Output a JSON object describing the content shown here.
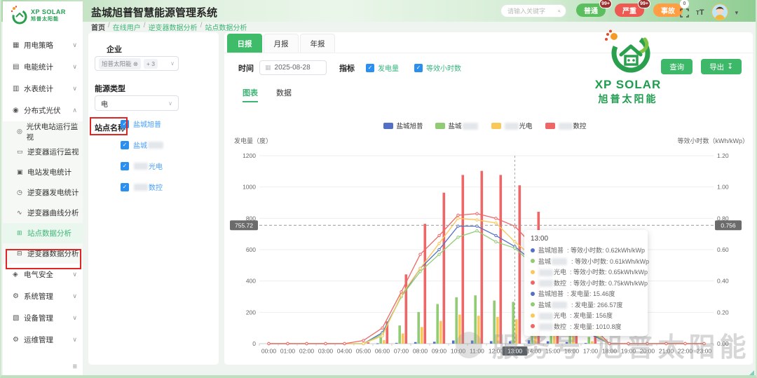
{
  "header": {
    "title": "盐城旭普智慧能源管理系统",
    "logo_text": "XP SOLAR",
    "logo_sub": "旭普太阳能",
    "search_placeholder": "请输入关键字",
    "alarms": [
      {
        "label": "普通",
        "count": "99+",
        "color": "#5bbf5f",
        "badge_bg": "#9e2f2f",
        "badge_fg": "#ffffff"
      },
      {
        "label": "严重",
        "count": "99+",
        "color": "#ee5a52",
        "badge_bg": "#9e2f2f",
        "badge_fg": "#ffffff"
      },
      {
        "label": "事故",
        "count": "0",
        "color": "#ff9e43",
        "badge_bg": "#ffffff",
        "badge_fg": "#777777"
      }
    ]
  },
  "breadcrumb": [
    "首页",
    "在线用户",
    "逆变器数据分析",
    "站点数据分析"
  ],
  "sidebar": {
    "items": [
      {
        "icon": "grid-icon",
        "glyph": "▦",
        "label": "用电策略",
        "expandable": true
      },
      {
        "icon": "energy-stats-icon",
        "glyph": "▤",
        "label": "电能统计",
        "expandable": true
      },
      {
        "icon": "water-meter-icon",
        "glyph": "▥",
        "label": "水表统计",
        "expandable": true
      },
      {
        "icon": "pv-icon",
        "glyph": "◉",
        "label": "分布式光伏",
        "expandable": true,
        "open": true,
        "children": [
          {
            "icon": "station-monitor-icon",
            "glyph": "◎",
            "label": "光伏电站运行监视"
          },
          {
            "icon": "inverter-monitor-icon",
            "glyph": "▭",
            "label": "逆变器运行监视"
          },
          {
            "icon": "gen-stats-icon",
            "glyph": "▣",
            "label": "电站发电统计"
          },
          {
            "icon": "inverter-stats-icon",
            "glyph": "◷",
            "label": "逆变器发电统计"
          },
          {
            "icon": "curve-icon",
            "glyph": "∿",
            "label": "逆变器曲线分析"
          },
          {
            "icon": "site-analysis-icon",
            "glyph": "⊞",
            "label": "站点数据分析",
            "active": true
          },
          {
            "icon": "inverter-analysis-icon",
            "glyph": "⊟",
            "label": "逆变器数据分析"
          }
        ]
      },
      {
        "icon": "electric-safety-icon",
        "glyph": "◈",
        "label": "电气安全",
        "expandable": true
      },
      {
        "icon": "system-icon",
        "glyph": "⚙",
        "label": "系统管理",
        "expandable": true
      },
      {
        "icon": "device-icon",
        "glyph": "▧",
        "label": "设备管理",
        "expandable": true
      },
      {
        "icon": "ops-icon",
        "glyph": "⚙",
        "label": "运维管理",
        "expandable": true
      }
    ]
  },
  "filters": {
    "company_label": "企业",
    "company_tag": "旭普太阳能 ⊗",
    "company_more": "+ 3",
    "energy_label": "能源类型",
    "energy_value": "电",
    "site_label": "站点名称"
  },
  "sites": [
    {
      "color": "#5470c6",
      "parts": [
        {
          "text": "盐城旭普"
        }
      ],
      "checked": true
    },
    {
      "color": "#91cc75",
      "parts": [
        {
          "text": "盐城"
        },
        {
          "redact": 22
        }
      ],
      "checked": true
    },
    {
      "color": "#fac858",
      "parts": [
        {
          "redact": 20
        },
        {
          "text": "光电"
        }
      ],
      "checked": true
    },
    {
      "color": "#ee6666",
      "parts": [
        {
          "redact": 20
        },
        {
          "text": "数控"
        }
      ],
      "checked": true
    }
  ],
  "toolbar": {
    "tabs": [
      "日报",
      "月报",
      "年报"
    ],
    "active_tab": "日报",
    "time_label": "时间",
    "date_value": "2025-08-28",
    "metric_label": "指标",
    "metrics": [
      {
        "label": "发电量",
        "checked": true
      },
      {
        "label": "等效小时数",
        "checked": true
      }
    ],
    "query_label": "查询",
    "export_label": "导出",
    "view_tabs": [
      "图表",
      "数据"
    ],
    "active_view": "图表"
  },
  "icons": {
    "check": "✓",
    "chevron_down": "∨",
    "chevron_up": "∧",
    "calendar": "▦",
    "download": "↧",
    "collapse": "≡",
    "caret": "▾"
  },
  "chart_data": {
    "type": "bar+line",
    "x": [
      "00:00",
      "01:00",
      "02:00",
      "03:00",
      "04:00",
      "05:00",
      "06:00",
      "07:00",
      "08:00",
      "09:00",
      "10:00",
      "11:00",
      "12:00",
      "13:00",
      "14:00",
      "15:00",
      "16:00",
      "17:00",
      "18:00",
      "19:00",
      "20:00",
      "21:00",
      "22:00",
      "23:00"
    ],
    "left_axis": {
      "name": "发电量（度）",
      "min": 0,
      "max": 1200,
      "interval": 200
    },
    "right_axis": {
      "name": "等效小时数（kWh/kWp）",
      "min": 0,
      "max": 1.2,
      "interval": 0.2
    },
    "legend_position": "top-center",
    "grid": true,
    "series": [
      {
        "site": 0,
        "metric": "发电量",
        "type": "bar",
        "axis": "left",
        "values": [
          0,
          0,
          0,
          0,
          0,
          0,
          2,
          5,
          10,
          12,
          20,
          20,
          16,
          15.46,
          22,
          15,
          10,
          4,
          0,
          0,
          0,
          0,
          0,
          0
        ]
      },
      {
        "site": 1,
        "metric": "发电量",
        "type": "bar",
        "axis": "left",
        "values": [
          0,
          0,
          0,
          0,
          0,
          0,
          40,
          116,
          202,
          253,
          296,
          308,
          275,
          266.57,
          184,
          164,
          104,
          43,
          0,
          0,
          0,
          0,
          0,
          0
        ]
      },
      {
        "site": 2,
        "metric": "发电量",
        "type": "bar",
        "axis": "left",
        "values": [
          0,
          0,
          0,
          0,
          0,
          0,
          22,
          65,
          106,
          145,
          185,
          178,
          171,
          156,
          122,
          93,
          50,
          15,
          0,
          0,
          0,
          0,
          0,
          0
        ]
      },
      {
        "site": 3,
        "metric": "发电量",
        "type": "bar",
        "axis": "left",
        "values": [
          0,
          0,
          0,
          0,
          0,
          8,
          142,
          442,
          765,
          964,
          1077,
          1103,
          1077,
          1010.8,
          842,
          190,
          186,
          79,
          0,
          0,
          0,
          0,
          0,
          0
        ]
      },
      {
        "site": 0,
        "metric": "等效小时数",
        "type": "line",
        "axis": "right",
        "values": [
          0,
          0,
          0,
          0,
          0,
          0,
          0.07,
          0.3,
          0.48,
          0.6,
          0.75,
          0.75,
          0.69,
          0.62,
          0.52,
          0.4,
          0.27,
          0.06,
          0,
          0,
          0,
          0,
          0,
          0
        ]
      },
      {
        "site": 1,
        "metric": "等效小时数",
        "type": "line",
        "axis": "right",
        "values": [
          0,
          0,
          0,
          0,
          0,
          0,
          0.06,
          0.3,
          0.46,
          0.57,
          0.68,
          0.72,
          0.65,
          0.61,
          0.5,
          0.38,
          0.25,
          0.07,
          0,
          0,
          0,
          0,
          0,
          0
        ]
      },
      {
        "site": 2,
        "metric": "等效小时数",
        "type": "line",
        "axis": "right",
        "values": [
          0,
          0,
          0,
          0,
          0,
          0,
          0.05,
          0.31,
          0.48,
          0.64,
          0.8,
          0.79,
          0.77,
          0.65,
          0.55,
          0.42,
          0.28,
          0.08,
          0,
          0,
          0,
          0,
          0,
          0
        ]
      },
      {
        "site": 3,
        "metric": "等效小时数",
        "type": "line",
        "axis": "right",
        "values": [
          0,
          0,
          0,
          0,
          0,
          0.02,
          0.1,
          0.33,
          0.57,
          0.69,
          0.82,
          0.83,
          0.8,
          0.75,
          0.62,
          0.45,
          0.3,
          0.12,
          0,
          0,
          0,
          0,
          0,
          0
        ]
      }
    ],
    "markline": {
      "left_label": "755.72",
      "right_label": "0.756",
      "left_value": 755.72
    },
    "crosshair": {
      "x": "13:00"
    },
    "tooltip": {
      "title": "13:00",
      "rows": [
        {
          "site": 0,
          "metric": "等效小时数",
          "value": "0.62kWh/kWp"
        },
        {
          "site": 1,
          "metric": "等效小时数",
          "value": "0.61kWh/kWp"
        },
        {
          "site": 2,
          "metric": "等效小时数",
          "value": "0.65kWh/kWp"
        },
        {
          "site": 3,
          "metric": "等效小时数",
          "value": "0.75kWh/kWp"
        },
        {
          "site": 0,
          "metric": "发电量",
          "value": "15.46度"
        },
        {
          "site": 1,
          "metric": "发电量",
          "value": "266.57度"
        },
        {
          "site": 2,
          "metric": "发电量",
          "value": "156度"
        },
        {
          "site": 3,
          "metric": "发电量",
          "value": "1010.8度"
        }
      ]
    }
  },
  "watermark": {
    "brand_text": "XP SOLAR",
    "brand_sub": "旭普太阳能",
    "bottom_text": "服务号   旭普太阳能"
  },
  "colors": {
    "accent_green": "#3db768",
    "link_blue": "#4a9ff8",
    "checkbox_blue": "#2b8ff0",
    "palette": [
      "#5470c6",
      "#91cc75",
      "#fac858",
      "#ee6666"
    ]
  }
}
